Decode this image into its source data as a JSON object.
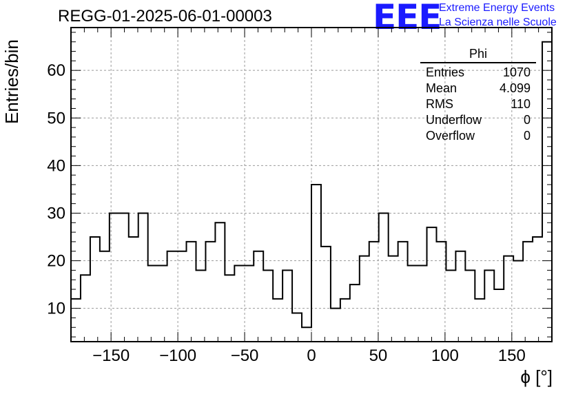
{
  "header": {
    "title": "REGG-01-2025-06-01-00003",
    "logo_mark": "EEE",
    "logo_line1": "Extreme Energy Events",
    "logo_line2": "La Scienza nelle Scuole"
  },
  "stats_box": {
    "name": "Phi",
    "rows": [
      {
        "label": "Entries",
        "value": "1070"
      },
      {
        "label": "Mean",
        "value": "4.099"
      },
      {
        "label": "RMS",
        "value": "110"
      },
      {
        "label": "Underflow",
        "value": "0"
      },
      {
        "label": "Overflow",
        "value": "0"
      }
    ]
  },
  "chart_data": {
    "type": "bar",
    "style": "step-histogram",
    "ylabel": "Entries/bin",
    "xlabel": "ϕ [°]",
    "xlim": [
      -180,
      180
    ],
    "ylim": [
      3,
      69
    ],
    "grid": true,
    "bin_width": 7.2,
    "bin_edges_start": -180,
    "values": [
      12,
      17,
      25,
      22,
      30,
      30,
      25,
      30,
      19,
      19,
      22,
      22,
      24,
      18,
      24,
      28,
      17,
      19,
      19,
      22,
      18,
      12,
      18,
      9,
      6,
      36,
      23,
      10,
      12,
      15,
      21,
      24,
      30,
      21,
      24,
      19,
      19,
      27,
      24,
      18,
      22,
      18,
      12,
      18,
      14,
      21,
      20,
      24,
      25,
      66
    ],
    "x_ticks": [
      "−150",
      "−100",
      "−50",
      "0",
      "50",
      "100",
      "150"
    ],
    "x_tick_values": [
      -150,
      -100,
      -50,
      0,
      50,
      100,
      150
    ],
    "y_ticks": [
      "10",
      "20",
      "30",
      "40",
      "50",
      "60"
    ],
    "y_tick_values": [
      10,
      20,
      30,
      40,
      50,
      60
    ]
  }
}
